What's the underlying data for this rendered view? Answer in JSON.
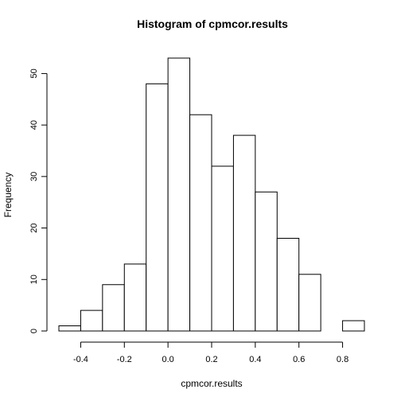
{
  "chart_data": {
    "type": "bar",
    "title": "Histogram of cpmcor.results",
    "xlabel": "cpmcor.results",
    "ylabel": "Frequency",
    "bin_edges": [
      -0.5,
      -0.4,
      -0.3,
      -0.2,
      -0.1,
      0.0,
      0.1,
      0.2,
      0.3,
      0.4,
      0.5,
      0.6,
      0.7,
      0.8,
      0.9
    ],
    "values": [
      1,
      4,
      9,
      13,
      48,
      53,
      42,
      32,
      38,
      27,
      18,
      11,
      0,
      2
    ],
    "xlim": [
      -0.5,
      0.9
    ],
    "ylim": [
      0,
      53
    ],
    "x_ticks": [
      -0.4,
      -0.2,
      0.0,
      0.2,
      0.4,
      0.6,
      0.8
    ],
    "x_tick_labels": [
      "-0.4",
      "-0.2",
      "0.0",
      "0.2",
      "0.4",
      "0.6",
      "0.8"
    ],
    "y_ticks": [
      0,
      10,
      20,
      30,
      40,
      50
    ],
    "y_tick_labels": [
      "0",
      "10",
      "20",
      "30",
      "40",
      "50"
    ],
    "grid": false,
    "bar_fill": "#ffffff",
    "bar_stroke": "#000000"
  }
}
